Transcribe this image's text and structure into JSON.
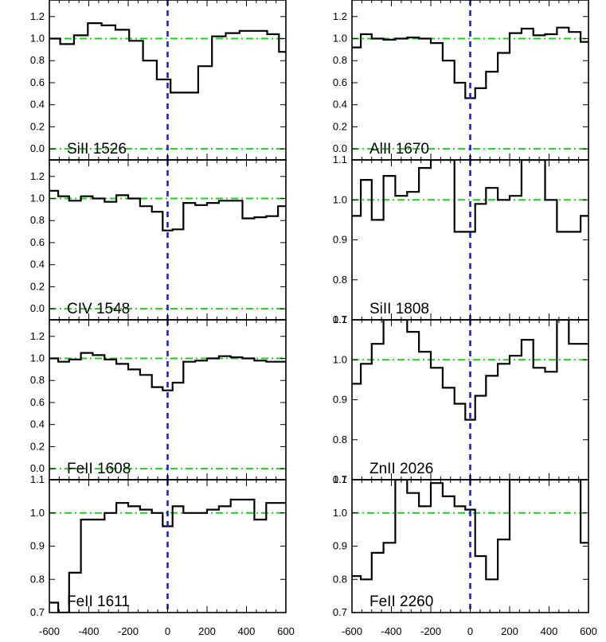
{
  "chart_data": {
    "type": "line",
    "layout": "4x2 grid of stacked panels, shared velocity axis",
    "line_style": "histogram (steps)",
    "colors": {
      "spectrum": "#000000",
      "continuum": "#22cc22",
      "velocity_zero": "#1a1aff"
    },
    "x_ticks": [
      "-600",
      "-400",
      "-200",
      "0",
      "200",
      "400",
      "600"
    ],
    "panels": [
      {
        "label": "SiII 1526",
        "column": 0,
        "row": 0,
        "xlim": [
          -600,
          600
        ],
        "ylim": [
          -0.1,
          1.35
        ],
        "yticks": [
          0.0,
          0.2,
          0.4,
          0.6,
          0.8,
          1.0,
          1.2
        ],
        "ytick_labels": [
          "0.0",
          "0.2",
          "0.4",
          "0.6",
          "0.8",
          "1.0",
          "1.2"
        ],
        "continuum": [
          0.0,
          1.0
        ],
        "zero_velocity": 0,
        "x": [
          -580,
          -510,
          -440,
          -370,
          -300,
          -230,
          -160,
          -90,
          -20,
          50,
          120,
          190,
          260,
          330,
          400,
          470,
          540,
          590
        ],
        "y": [
          1.0,
          0.95,
          1.03,
          1.14,
          1.12,
          1.08,
          0.98,
          0.8,
          0.63,
          0.51,
          0.51,
          0.75,
          1.02,
          1.05,
          1.07,
          1.07,
          1.04,
          0.88
        ]
      },
      {
        "label": "AlII 1670",
        "column": 1,
        "row": 0,
        "xlim": [
          -600,
          600
        ],
        "ylim": [
          -0.1,
          1.35
        ],
        "yticks": [
          0.0,
          0.2,
          0.4,
          0.6,
          0.8,
          1.0,
          1.2
        ],
        "ytick_labels": [
          "0.0",
          "0.2",
          "0.4",
          "0.6",
          "0.8",
          "1.0",
          "1.2"
        ],
        "continuum": [
          0.0,
          1.0
        ],
        "zero_velocity": 0,
        "x": [
          -580,
          -530,
          -470,
          -410,
          -350,
          -290,
          -230,
          -170,
          -110,
          -50,
          0,
          50,
          110,
          170,
          230,
          290,
          350,
          410,
          470,
          530,
          590
        ],
        "y": [
          0.92,
          1.04,
          1.0,
          0.99,
          1.0,
          1.01,
          1.0,
          0.96,
          0.8,
          0.6,
          0.46,
          0.55,
          0.7,
          0.87,
          1.05,
          1.09,
          1.03,
          1.04,
          1.1,
          1.06,
          0.97
        ]
      },
      {
        "label": "CIV 1548",
        "column": 0,
        "row": 1,
        "xlim": [
          -600,
          600
        ],
        "ylim": [
          -0.1,
          1.35
        ],
        "yticks": [
          0.0,
          0.2,
          0.4,
          0.6,
          0.8,
          1.0,
          1.2
        ],
        "ytick_labels": [
          "0.0",
          "0.2",
          "0.4",
          "0.6",
          "0.8",
          "1.0",
          "1.2"
        ],
        "continuum": [
          0.0,
          1.0
        ],
        "zero_velocity": 0,
        "x": [
          -580,
          -530,
          -470,
          -410,
          -350,
          -290,
          -230,
          -170,
          -110,
          -50,
          0,
          50,
          110,
          170,
          230,
          290,
          350,
          410,
          470,
          530,
          590
        ],
        "y": [
          1.07,
          1.02,
          0.98,
          1.02,
          1.0,
          0.97,
          1.03,
          1.0,
          0.93,
          0.88,
          0.71,
          0.72,
          0.96,
          0.94,
          0.96,
          0.98,
          0.98,
          0.82,
          0.83,
          0.84,
          0.93
        ]
      },
      {
        "label": "SiII 1808",
        "column": 1,
        "row": 1,
        "xlim": [
          -600,
          600
        ],
        "ylim": [
          0.7,
          1.1
        ],
        "yticks": [
          0.7,
          0.8,
          0.9,
          1.0,
          1.1
        ],
        "ytick_labels": [
          "0.7",
          "0.8",
          "0.9",
          "1.0",
          "1.1"
        ],
        "continuum": [
          1.0
        ],
        "zero_velocity": 0,
        "x": [
          -580,
          -530,
          -470,
          -410,
          -350,
          -290,
          -230,
          -170,
          -110,
          -50,
          0,
          50,
          110,
          170,
          230,
          290,
          350,
          410,
          470,
          530,
          590
        ],
        "y": [
          0.96,
          1.05,
          0.95,
          1.06,
          1.01,
          1.02,
          1.08,
          1.1,
          1.1,
          0.92,
          0.92,
          0.99,
          1.03,
          1.0,
          1.01,
          1.1,
          1.1,
          1.0,
          0.92,
          0.92,
          0.96
        ]
      },
      {
        "label": "FeII 1608",
        "column": 0,
        "row": 2,
        "xlim": [
          -600,
          600
        ],
        "ylim": [
          -0.1,
          1.35
        ],
        "yticks": [
          0.0,
          0.2,
          0.4,
          0.6,
          0.8,
          1.0,
          1.2
        ],
        "ytick_labels": [
          "0.0",
          "0.2",
          "0.4",
          "0.6",
          "0.8",
          "1.0",
          "1.2"
        ],
        "continuum": [
          0.0,
          1.0
        ],
        "zero_velocity": 0,
        "x": [
          -580,
          -530,
          -470,
          -410,
          -350,
          -290,
          -230,
          -170,
          -110,
          -50,
          0,
          50,
          110,
          170,
          230,
          290,
          350,
          410,
          470,
          530,
          590
        ],
        "y": [
          1.0,
          0.97,
          0.99,
          1.05,
          1.03,
          0.99,
          0.95,
          0.9,
          0.85,
          0.74,
          0.71,
          0.78,
          0.97,
          0.98,
          1.0,
          1.02,
          1.01,
          1.0,
          0.98,
          0.97,
          0.97
        ]
      },
      {
        "label": "ZnII 2026",
        "column": 1,
        "row": 2,
        "xlim": [
          -600,
          600
        ],
        "ylim": [
          0.7,
          1.1
        ],
        "yticks": [
          0.7,
          0.8,
          0.9,
          1.0,
          1.1
        ],
        "ytick_labels": [
          "0.7",
          "0.8",
          "0.9",
          "1.0",
          "1.1"
        ],
        "continuum": [
          1.0
        ],
        "zero_velocity": 0,
        "x": [
          -580,
          -530,
          -470,
          -410,
          -350,
          -290,
          -230,
          -170,
          -110,
          -50,
          0,
          50,
          110,
          170,
          230,
          290,
          350,
          410,
          470,
          530,
          590
        ],
        "y": [
          0.94,
          0.99,
          1.04,
          1.1,
          1.1,
          1.07,
          1.02,
          0.98,
          0.93,
          0.89,
          0.85,
          0.91,
          0.96,
          0.99,
          1.01,
          1.05,
          0.98,
          0.97,
          1.1,
          1.04,
          1.04
        ]
      },
      {
        "label": "FeII 1611",
        "column": 0,
        "row": 3,
        "xlim": [
          -600,
          600
        ],
        "ylim": [
          0.7,
          1.1
        ],
        "yticks": [
          0.7,
          0.8,
          0.9,
          1.0,
          1.1
        ],
        "ytick_labels": [
          "0.7",
          "0.8",
          "0.9",
          "1.0",
          "1.1"
        ],
        "continuum": [
          1.0
        ],
        "zero_velocity": 0,
        "x": [
          -580,
          -530,
          -470,
          -410,
          -350,
          -290,
          -230,
          -170,
          -110,
          -50,
          0,
          50,
          110,
          170,
          230,
          290,
          350,
          410,
          470,
          530,
          590
        ],
        "y": [
          0.73,
          0.7,
          0.82,
          0.98,
          0.98,
          1.0,
          1.03,
          1.02,
          1.01,
          1.0,
          0.96,
          1.02,
          1.0,
          1.0,
          1.01,
          1.02,
          1.04,
          1.04,
          0.98,
          1.03,
          1.03
        ]
      },
      {
        "label": "FeII 2260",
        "column": 1,
        "row": 3,
        "xlim": [
          -600,
          600
        ],
        "ylim": [
          0.7,
          1.1
        ],
        "yticks": [
          0.7,
          0.8,
          0.9,
          1.0,
          1.1
        ],
        "ytick_labels": [
          "0.7",
          "0.8",
          "0.9",
          "1.0",
          "1.1"
        ],
        "continuum": [
          1.0
        ],
        "zero_velocity": 0,
        "x": [
          -580,
          -530,
          -470,
          -410,
          -350,
          -290,
          -230,
          -170,
          -110,
          -50,
          0,
          50,
          110,
          170,
          230,
          290,
          350,
          410,
          470,
          530,
          590
        ],
        "y": [
          0.81,
          0.8,
          0.88,
          0.91,
          1.1,
          1.06,
          1.02,
          1.09,
          1.05,
          1.02,
          1.01,
          0.87,
          0.8,
          0.92,
          1.1,
          1.1,
          1.1,
          1.1,
          1.1,
          1.1,
          0.91
        ]
      }
    ]
  }
}
